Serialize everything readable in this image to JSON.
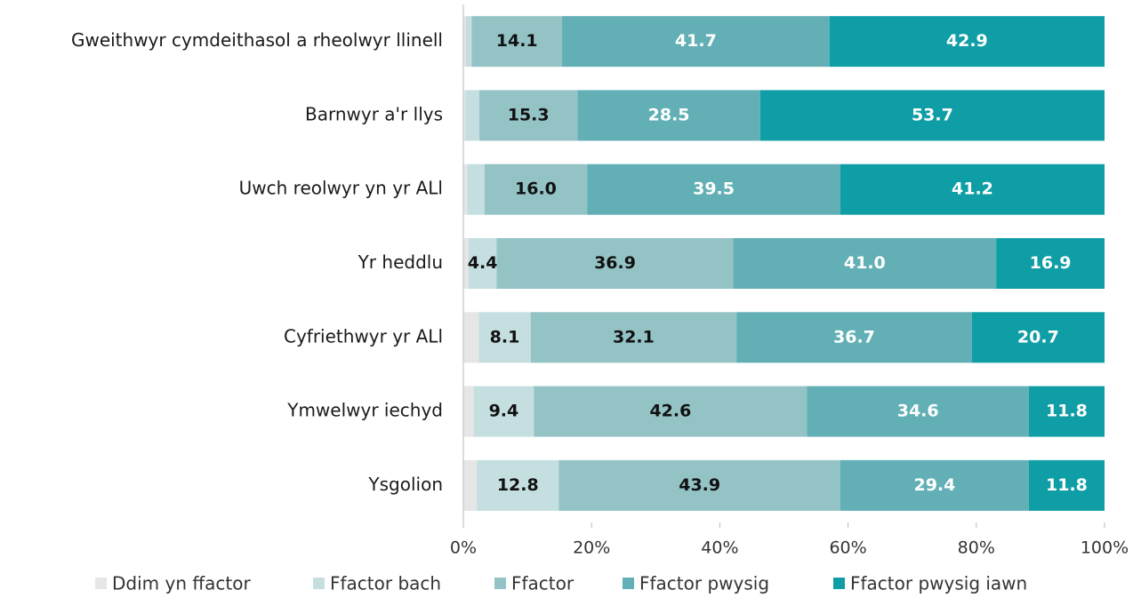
{
  "chart_data": {
    "type": "bar",
    "orientation": "horizontal",
    "stacked": true,
    "categories": [
      "Gweithwyr cymdeithasol a rheolwyr llinell",
      "Barnwyr a'r llys",
      "Uwch reolwyr yn yr ALl",
      "Yr heddlu",
      "Cyfriethwyr yr ALl",
      "Ymwelwyr iechyd",
      "Ysgolion"
    ],
    "series": [
      {
        "name": "Ddim yn ffactor",
        "color": "#e6e6e6",
        "values": [
          0.4,
          0.3,
          0.6,
          0.8,
          2.4,
          1.6,
          2.1
        ],
        "value_labels": [
          null,
          null,
          null,
          null,
          null,
          null,
          null
        ]
      },
      {
        "name": "Ffactor bach",
        "color": "#c5dfe1",
        "values": [
          0.9,
          2.2,
          2.7,
          4.4,
          8.1,
          9.4,
          12.8
        ],
        "value_labels": [
          null,
          null,
          null,
          "4.4",
          "8.1",
          "9.4",
          "12.8"
        ]
      },
      {
        "name": "Ffactor",
        "color": "#94c3c6",
        "values": [
          14.1,
          15.3,
          16.0,
          36.9,
          32.1,
          42.6,
          43.9
        ],
        "value_labels": [
          "14.1",
          "15.3",
          "16.0",
          "36.9",
          "32.1",
          "42.6",
          "43.9"
        ]
      },
      {
        "name": "Ffactor pwysig",
        "color": "#62b0b5",
        "values": [
          41.7,
          28.5,
          39.5,
          41.0,
          36.7,
          34.6,
          29.4
        ],
        "value_labels": [
          "41.7",
          "28.5",
          "39.5",
          "41.0",
          "36.7",
          "34.6",
          "29.4"
        ]
      },
      {
        "name": "Ffactor pwysig iawn",
        "color": "#0f9ea6",
        "values": [
          42.9,
          53.7,
          41.2,
          16.9,
          20.7,
          11.8,
          11.8
        ],
        "value_labels": [
          "42.9",
          "53.7",
          "41.2",
          "16.9",
          "20.7",
          "11.8",
          "11.8"
        ]
      }
    ],
    "xlim": [
      0,
      100
    ],
    "xticks": [
      {
        "value": 0,
        "label": "0%"
      },
      {
        "value": 20,
        "label": "20%"
      },
      {
        "value": 40,
        "label": "40%"
      },
      {
        "value": 60,
        "label": "60%"
      },
      {
        "value": 80,
        "label": "80%"
      },
      {
        "value": 100,
        "label": "100%"
      }
    ],
    "legend": "bottom"
  }
}
